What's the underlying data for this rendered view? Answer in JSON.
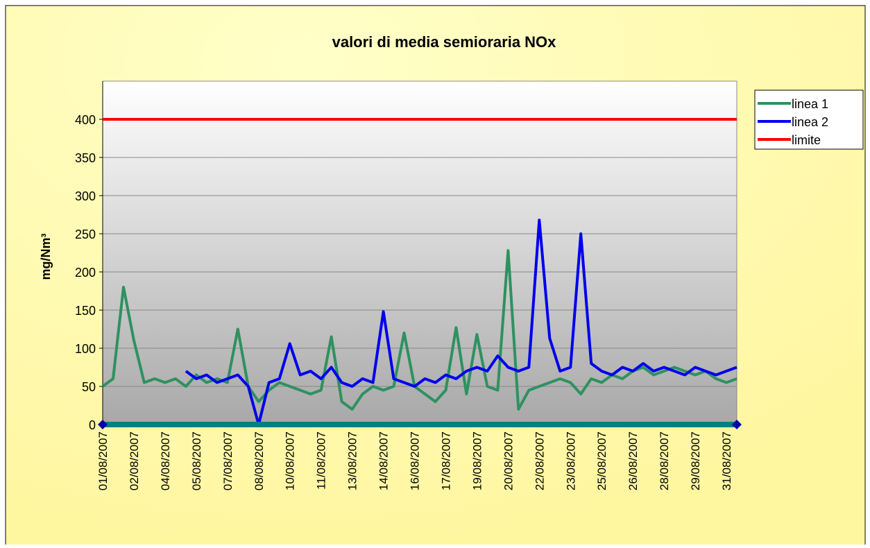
{
  "chart_data": {
    "type": "line",
    "title": "valori di media semioraria NOx",
    "y_label": "mg/Nm³",
    "categories": [
      "01/08/2007",
      null,
      null,
      "02/08/2007",
      null,
      null,
      "04/08/2007",
      null,
      null,
      "05/08/2007",
      null,
      null,
      "07/08/2007",
      null,
      null,
      "08/08/2007",
      null,
      null,
      "10/08/2007",
      null,
      null,
      "11/08/2007",
      null,
      null,
      "13/08/2007",
      null,
      null,
      "14/08/2007",
      null,
      null,
      "16/08/2007",
      null,
      null,
      "17/08/2007",
      null,
      null,
      "19/08/2007",
      null,
      null,
      "20/08/2007",
      null,
      null,
      "22/08/2007",
      null,
      null,
      "23/08/2007",
      null,
      null,
      "25/08/2007",
      null,
      null,
      "26/08/2007",
      null,
      null,
      "28/08/2007",
      null,
      null,
      "29/08/2007",
      null,
      null,
      "31/08/2007",
      null
    ],
    "series": [
      {
        "name": "linea 1",
        "color": "#2e9160",
        "values": [
          50,
          60,
          180,
          110,
          55,
          60,
          55,
          60,
          50,
          65,
          55,
          60,
          55,
          125,
          50,
          30,
          45,
          55,
          50,
          45,
          40,
          45,
          115,
          30,
          20,
          40,
          50,
          45,
          50,
          120,
          50,
          40,
          30,
          45,
          127,
          40,
          118,
          50,
          45,
          228,
          20,
          45,
          50,
          55,
          60,
          55,
          40,
          60,
          55,
          65,
          60,
          70,
          75,
          65,
          70,
          75,
          70,
          65,
          70,
          60,
          55,
          60
        ]
      },
      {
        "name": "linea 2",
        "color": "#0000ee",
        "values": [
          null,
          null,
          null,
          null,
          null,
          null,
          null,
          null,
          70,
          60,
          65,
          55,
          60,
          65,
          50,
          0,
          55,
          60,
          106,
          65,
          70,
          60,
          75,
          55,
          50,
          60,
          55,
          148,
          60,
          55,
          50,
          60,
          55,
          65,
          60,
          70,
          75,
          70,
          90,
          75,
          70,
          75,
          268,
          113,
          70,
          75,
          250,
          80,
          70,
          65,
          75,
          70,
          80,
          70,
          75,
          70,
          65,
          75,
          70,
          65,
          70,
          75
        ]
      },
      {
        "name": "limite",
        "color": "#ff0000",
        "values": [
          400,
          400,
          400,
          400,
          400,
          400,
          400,
          400,
          400,
          400,
          400,
          400,
          400,
          400,
          400,
          400,
          400,
          400,
          400,
          400,
          400,
          400,
          400,
          400,
          400,
          400,
          400,
          400,
          400,
          400,
          400,
          400,
          400,
          400,
          400,
          400,
          400,
          400,
          400,
          400,
          400,
          400,
          400,
          400,
          400,
          400,
          400,
          400,
          400,
          400,
          400,
          400,
          400,
          400,
          400,
          400,
          400,
          400,
          400,
          400,
          400,
          400
        ]
      },
      {
        "color": "#008080",
        "values": [
          0,
          0,
          0,
          0,
          0,
          0,
          0,
          0,
          0,
          0,
          0,
          0,
          0,
          0,
          0,
          0,
          0,
          0,
          0,
          0,
          0,
          0,
          0,
          0,
          0,
          0,
          0,
          0,
          0,
          0,
          0,
          0,
          0,
          0,
          0,
          0,
          0,
          0,
          0,
          0,
          0,
          0,
          0,
          0,
          0,
          0,
          0,
          0,
          0,
          0,
          0,
          0,
          0,
          0,
          0,
          0,
          0,
          0,
          0,
          0,
          0,
          0
        ]
      }
    ],
    "ylim": [
      0,
      450
    ],
    "yticks": [
      0,
      50,
      100,
      150,
      200,
      250,
      300,
      350,
      400
    ],
    "grid": true,
    "legend": "right"
  }
}
